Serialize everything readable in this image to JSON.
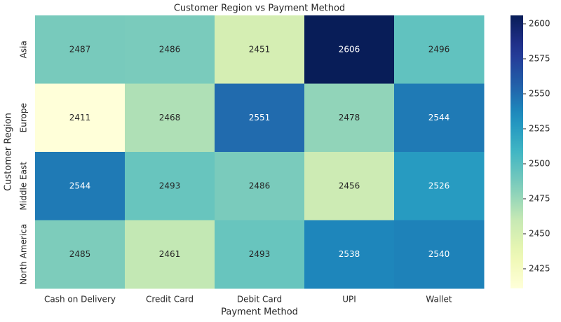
{
  "chart_data": {
    "type": "heatmap",
    "title": "Customer Region vs Payment Method",
    "x_label": "Payment Method",
    "y_label": "Customer Region",
    "x_categories": [
      "Cash on Delivery",
      "Credit Card",
      "Debit Card",
      "UPI",
      "Wallet"
    ],
    "y_categories": [
      "Asia",
      "Europe",
      "Middle East",
      "North America"
    ],
    "values": [
      [
        2487,
        2486,
        2451,
        2606,
        2496
      ],
      [
        2411,
        2468,
        2551,
        2478,
        2544
      ],
      [
        2544,
        2493,
        2486,
        2456,
        2526
      ],
      [
        2485,
        2461,
        2493,
        2538,
        2540
      ]
    ],
    "colormap": "YlGnBu",
    "zlim": [
      2411,
      2606
    ],
    "zticks": [
      2425,
      2450,
      2475,
      2500,
      2525,
      2550,
      2575,
      2600
    ]
  }
}
